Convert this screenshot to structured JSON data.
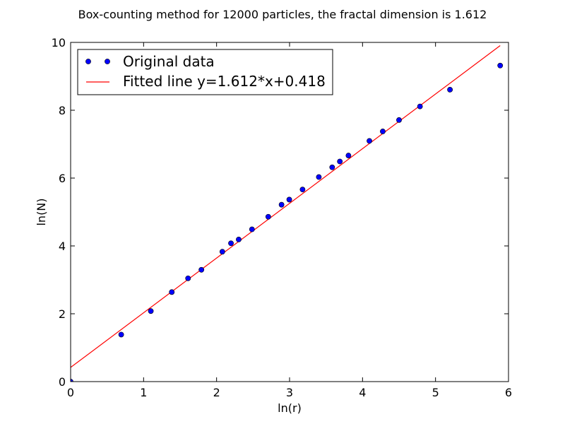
{
  "chart_data": {
    "type": "scatter",
    "title": "Box-counting method for 12000 particles, the fractal dimension is 1.612",
    "xlabel": "ln(r)",
    "ylabel": "ln(N)",
    "xlim": [
      0,
      6
    ],
    "ylim": [
      0,
      10
    ],
    "xticks": [
      "0",
      "1",
      "2",
      "3",
      "4",
      "5",
      "6"
    ],
    "yticks": [
      "0",
      "2",
      "4",
      "6",
      "8",
      "10"
    ],
    "grid": false,
    "legend": {
      "placement": "top-left",
      "entries": [
        "Original data",
        "Fitted line y=1.612*x+0.418"
      ]
    },
    "series": [
      {
        "name": "Original data",
        "kind": "points",
        "color": "#0000ff",
        "x": [
          0,
          0.693,
          1.099,
          1.386,
          1.609,
          1.792,
          2.079,
          2.197,
          2.303,
          2.485,
          2.708,
          2.89,
          2.996,
          3.178,
          3.401,
          3.584,
          3.689,
          3.807,
          4.094,
          4.277,
          4.5,
          4.787,
          5.198,
          5.886
        ],
        "y": [
          0,
          1.386,
          2.079,
          2.639,
          3.045,
          3.296,
          3.829,
          4.078,
          4.19,
          4.489,
          4.86,
          5.215,
          5.366,
          5.663,
          6.031,
          6.317,
          6.49,
          6.665,
          7.096,
          7.376,
          7.712,
          8.112,
          8.606,
          9.317
        ]
      },
      {
        "name": "Fitted line y=1.612*x+0.418",
        "kind": "line",
        "color": "#ff0000",
        "slope": 1.612,
        "intercept": 0.418,
        "x": [
          0,
          5.886
        ]
      }
    ]
  }
}
